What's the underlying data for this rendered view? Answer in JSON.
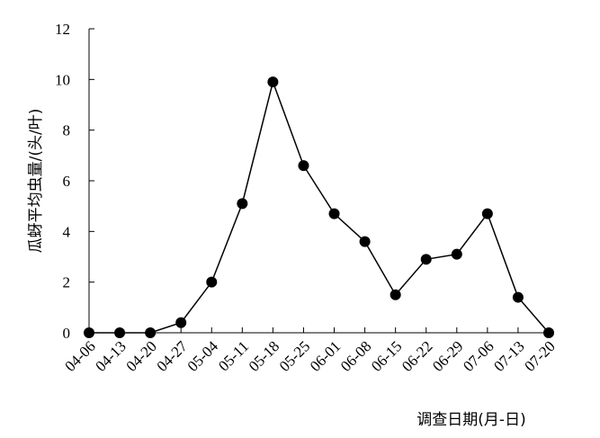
{
  "chart_data": {
    "type": "line",
    "title": "",
    "xlabel": "调查日期(月-日)",
    "ylabel": "瓜蚜平均虫量/(头/叶)",
    "ylim": [
      0,
      12
    ],
    "yticks": [
      0,
      2,
      4,
      6,
      8,
      10,
      12
    ],
    "grid": false,
    "legend": "none",
    "categories": [
      "04-06",
      "04-13",
      "04-20",
      "04-27",
      "05-04",
      "05-11",
      "05-18",
      "05-25",
      "06-01",
      "06-08",
      "06-15",
      "06-22",
      "06-29",
      "07-06",
      "07-13",
      "07-20"
    ],
    "series": [
      {
        "values": [
          0,
          0,
          0,
          0.4,
          2.0,
          5.1,
          9.9,
          6.6,
          4.7,
          3.6,
          1.5,
          2.9,
          3.1,
          4.7,
          1.4,
          0
        ],
        "color": "#000000",
        "marker": "circle"
      }
    ]
  }
}
